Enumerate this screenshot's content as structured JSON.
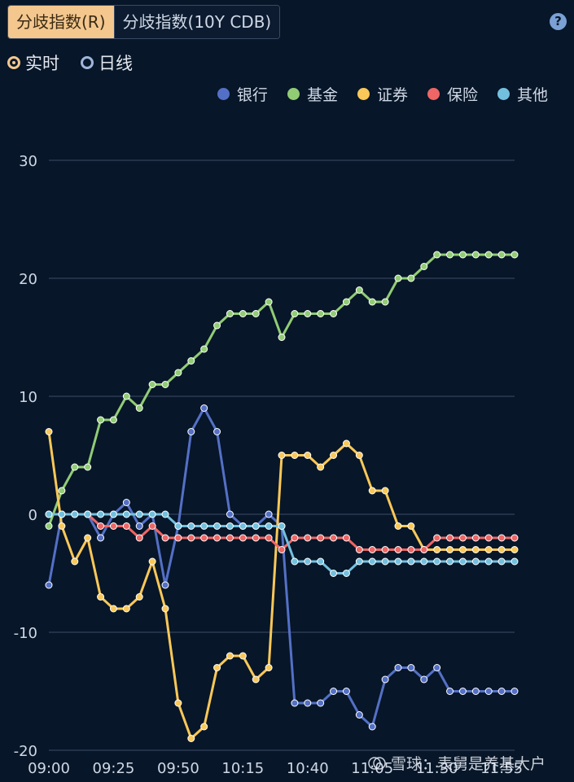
{
  "tabs": [
    {
      "label": "分歧指数(R)",
      "active": true
    },
    {
      "label": "分歧指数(10Y CDB)",
      "active": false
    }
  ],
  "radios": [
    {
      "label": "实时",
      "checked": true
    },
    {
      "label": "日线",
      "checked": false
    }
  ],
  "help_icon": "?",
  "watermark": "雪球：表舅是养基大户",
  "chart_data": {
    "type": "line",
    "x": [
      "09:00",
      "09:05",
      "09:10",
      "09:15",
      "09:20",
      "09:25",
      "09:30",
      "09:35",
      "09:40",
      "09:45",
      "09:50",
      "09:55",
      "10:00",
      "10:05",
      "10:10",
      "10:15",
      "10:20",
      "10:25",
      "10:30",
      "10:35",
      "10:40",
      "10:45",
      "10:50",
      "10:55",
      "11:00",
      "11:05",
      "11:10",
      "11:15",
      "11:20",
      "11:25",
      "11:30",
      "11:35",
      "11:40",
      "11:45",
      "11:50",
      "11:55",
      "12:00"
    ],
    "xticks": [
      "09:00",
      "09:25",
      "09:50",
      "10:15",
      "10:40",
      "11:05",
      "11:30",
      "11:55"
    ],
    "ylim": [
      -20,
      30
    ],
    "yticks": [
      30,
      20,
      10,
      0,
      -10,
      -20
    ],
    "grid": true,
    "legend_position": "top-right",
    "series": [
      {
        "name": "银行",
        "color": "#5470c6",
        "values": [
          -6,
          0,
          0,
          0,
          -2,
          0,
          1,
          -1,
          0,
          -6,
          -1,
          7,
          9,
          7,
          0,
          -1,
          -1,
          0,
          -1,
          -16,
          -16,
          -16,
          -15,
          -15,
          -17,
          -18,
          -14,
          -13,
          -13,
          -14,
          -13,
          -15,
          -15,
          -15,
          -15,
          -15,
          -15
        ]
      },
      {
        "name": "基金",
        "color": "#91cc75",
        "values": [
          -1,
          2,
          4,
          4,
          8,
          8,
          10,
          9,
          11,
          11,
          12,
          13,
          14,
          16,
          17,
          17,
          17,
          18,
          15,
          17,
          17,
          17,
          17,
          18,
          19,
          18,
          18,
          20,
          20,
          21,
          22,
          22,
          22,
          22,
          22,
          22,
          22
        ]
      },
      {
        "name": "证券",
        "color": "#fac858",
        "values": [
          7,
          -1,
          -4,
          -2,
          -7,
          -8,
          -8,
          -7,
          -4,
          -8,
          -16,
          -19,
          -18,
          -13,
          -12,
          -12,
          -14,
          -13,
          5,
          5,
          5,
          4,
          5,
          6,
          5,
          2,
          2,
          -1,
          -1,
          -3,
          -3,
          -3,
          -3,
          -3,
          -3,
          -3,
          -3
        ]
      },
      {
        "name": "保险",
        "color": "#ee6666",
        "values": [
          0,
          0,
          0,
          0,
          -1,
          -1,
          -1,
          -2,
          -1,
          -2,
          -2,
          -2,
          -2,
          -2,
          -2,
          -2,
          -2,
          -2,
          -3,
          -2,
          -2,
          -2,
          -2,
          -2,
          -3,
          -3,
          -3,
          -3,
          -3,
          -3,
          -2,
          -2,
          -2,
          -2,
          -2,
          -2,
          -2
        ]
      },
      {
        "name": "其他",
        "color": "#73c0de",
        "values": [
          0,
          0,
          0,
          0,
          0,
          0,
          0,
          0,
          0,
          0,
          -1,
          -1,
          -1,
          -1,
          -1,
          -1,
          -1,
          -1,
          -1,
          -4,
          -4,
          -4,
          -5,
          -5,
          -4,
          -4,
          -4,
          -4,
          -4,
          -4,
          -4,
          -4,
          -4,
          -4,
          -4,
          -4,
          -4
        ]
      }
    ]
  }
}
